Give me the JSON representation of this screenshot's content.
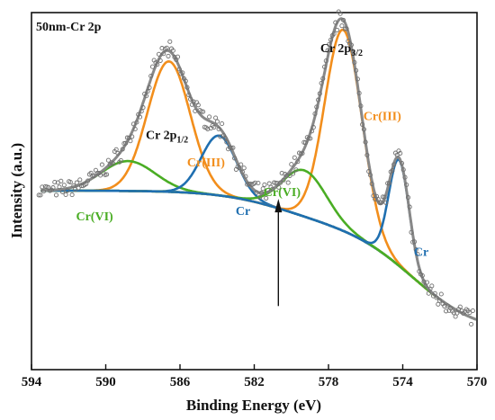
{
  "chart_data": {
    "type": "line",
    "title": "50nm-Cr 2p",
    "xlabel": "Binding Energy (eV)",
    "ylabel": "Intensity (a.u.)",
    "x_reversed": true,
    "xlim": [
      570,
      594
    ],
    "ylim": [
      0,
      100
    ],
    "xticks": [
      594,
      590,
      586,
      582,
      578,
      574,
      570
    ],
    "y_ticks_shown": false,
    "grid": false,
    "legend": "none",
    "background": {
      "a": 41,
      "b": 12,
      "x0": 573.4,
      "x1": 580.6,
      "k": 1.8
    },
    "series": [
      {
        "name": "Cr(III)",
        "role": "Cr 2p1/2 Cr(III) component",
        "color": "#f28e1c",
        "peak": {
          "center": 586.6,
          "height": 48,
          "sigma": 1.15
        }
      },
      {
        "name": "Cr(VI)",
        "role": "Cr 2p1/2 Cr(VI) component",
        "color": "#4aad24",
        "peak": {
          "center": 588.8,
          "height": 11,
          "sigma": 1.45
        }
      },
      {
        "name": "Cr",
        "role": "Cr 2p1/2 metal component",
        "color": "#1f6fb0",
        "peak": {
          "center": 583.9,
          "height": 22,
          "sigma": 0.95
        }
      },
      {
        "name": "Cr(III)",
        "role": "Cr 2p3/2 Cr(III) component",
        "color": "#f28e1c",
        "peak": {
          "center": 577.2,
          "height": 74,
          "sigma": 1.0
        }
      },
      {
        "name": "Cr(VI)",
        "role": "Cr 2p3/2 Cr(VI) component",
        "color": "#4aad24",
        "peak": {
          "center": 579.3,
          "height": 17,
          "sigma": 1.2
        }
      },
      {
        "name": "Cr",
        "role": "Cr 2p3/2 metal component",
        "color": "#1f6fb0",
        "peak": {
          "center": 574.2,
          "height": 39,
          "sigma": 0.55
        }
      }
    ],
    "background_color": "#8aa0e8",
    "envelope_color": "#888888",
    "points_color": "#6f6f6f",
    "annotations": [
      {
        "text": "Cr 2p",
        "sub": "1/2",
        "x": 586.7,
        "y": 72,
        "color": "#111111"
      },
      {
        "text": "Cr 2p",
        "sub": "3/2",
        "x": 577.3,
        "y": 104,
        "color": "#111111"
      },
      {
        "text": "Cr(III)",
        "x": 584.6,
        "y": 62,
        "color": "#f28e1c"
      },
      {
        "text": "Cr(III)",
        "x": 575.1,
        "y": 79,
        "color": "#f28e1c"
      },
      {
        "text": "Cr(VI)",
        "x": 590.6,
        "y": 42,
        "color": "#4aad24"
      },
      {
        "text": "Cr(VI)",
        "x": 580.5,
        "y": 51,
        "color": "#4aad24"
      },
      {
        "text": "Cr",
        "x": 582.6,
        "y": 44,
        "color": "#1f6fb0"
      },
      {
        "text": "Cr",
        "x": 573.0,
        "y": 29,
        "color": "#1f6fb0"
      }
    ]
  }
}
